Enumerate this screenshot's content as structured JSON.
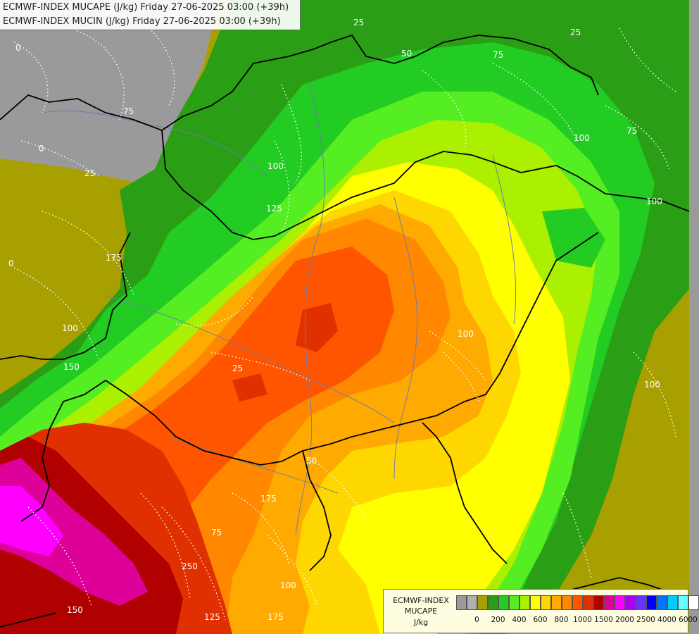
{
  "title": {
    "line1": "ECMWF-INDEX MUCAPE (J/kg) Friday 27-06-2025 03:00 (+39h)",
    "line2": "ECMWF-INDEX MUCIN (J/kg) Friday 27-06-2025 03:00 (+39h)"
  },
  "legend": {
    "title_line1": "ECMWF-INDEX",
    "title_line2": "MUCAPE",
    "title_line3": "J/kg",
    "swatches": [
      {
        "color": "#9a9a9a"
      },
      {
        "color": "#b0b0b0"
      },
      {
        "color": "#a8a000"
      },
      {
        "color": "#2a9e14"
      },
      {
        "color": "#22cc22"
      },
      {
        "color": "#55ee22"
      },
      {
        "color": "#aaf000"
      },
      {
        "color": "#ffff00"
      },
      {
        "color": "#ffd700"
      },
      {
        "color": "#ffaa00"
      },
      {
        "color": "#ff8800"
      },
      {
        "color": "#ff5500"
      },
      {
        "color": "#e03000"
      },
      {
        "color": "#b00000"
      },
      {
        "color": "#dd0099"
      },
      {
        "color": "#ff00ff"
      },
      {
        "color": "#aa00ee"
      },
      {
        "color": "#6633ff"
      },
      {
        "color": "#0000ff"
      },
      {
        "color": "#0077ff"
      },
      {
        "color": "#00ccff"
      },
      {
        "color": "#66ffff"
      },
      {
        "color": "#ffffff"
      }
    ],
    "ticks": [
      "0",
      "200",
      "400",
      "600",
      "800",
      "1000",
      "1500",
      "2000",
      "2500",
      "4000",
      "6000"
    ]
  },
  "contour_labels": [
    "0",
    "0",
    "0",
    "75",
    "25",
    "100",
    "125",
    "175",
    "100",
    "150",
    "25",
    "50",
    "25",
    "75",
    "100",
    "75",
    "100",
    "25",
    "100",
    "100",
    "50",
    "175",
    "250",
    "125",
    "150",
    "100",
    "175",
    "75"
  ],
  "colors": {
    "grey": "#9a9a9a",
    "olive": "#a8a000",
    "dark_green": "#2a9e14",
    "green": "#22cc22",
    "lime": "#55ee22",
    "yellow_green": "#aaf000",
    "yellow": "#ffff00",
    "gold": "#ffd700",
    "orange_light": "#ffaa00",
    "orange": "#ff8800",
    "orange_red": "#ff5500",
    "red": "#e03000",
    "dark_red": "#b00000",
    "magenta_dark": "#dd0099",
    "magenta": "#ff00ff",
    "border": "#000000",
    "river": "#6a7fb0"
  }
}
